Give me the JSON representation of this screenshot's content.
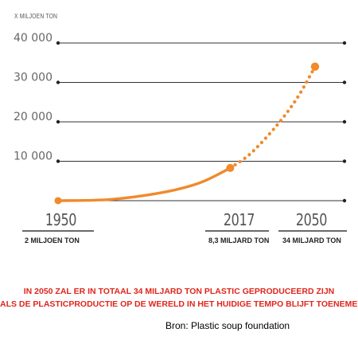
{
  "chart_data": {
    "type": "line",
    "unit_label": "X MILJOEN TON",
    "y_ticks": [
      "40 000",
      "30 000",
      "20 000",
      "10 000"
    ],
    "y_tick_values": [
      40000,
      30000,
      20000,
      10000
    ],
    "ylim": [
      0,
      40000
    ],
    "xlim": [
      1950,
      2050
    ],
    "x_labels": [
      "1950",
      "2017",
      "2050"
    ],
    "x_sublabels": [
      "2 MILJOEN TON",
      "8,3 MILJARD TON",
      "34 MILJARD TON"
    ],
    "series": [
      {
        "style": "solid",
        "points": [
          [
            1950,
            2
          ],
          [
            1970,
            300
          ],
          [
            1990,
            2000
          ],
          [
            2005,
            4500
          ],
          [
            2017,
            8300
          ]
        ]
      },
      {
        "style": "dotted",
        "points": [
          [
            2017,
            8300
          ],
          [
            2025,
            12000
          ],
          [
            2035,
            19000
          ],
          [
            2043,
            26000
          ],
          [
            2050,
            34000
          ]
        ]
      }
    ],
    "grid": true,
    "line_color": "#f08a2c",
    "grid_color": "#333333"
  },
  "note_lines": [
    "IN 2050 ZAL ER IN TOTAAL 34 MILJARD TON PLASTIC GEPRODUCEERD ZIJN",
    "ALS DE PLASTICPRODUCTIE OP DE WERELD IN HET HUIDIGE TEMPO BLIJFT TOENEMEN"
  ],
  "source": "Bron: Plastic soup foundation",
  "colors": {
    "accent": "#f08a2c",
    "note": "#e0251b",
    "text": "#555555"
  }
}
